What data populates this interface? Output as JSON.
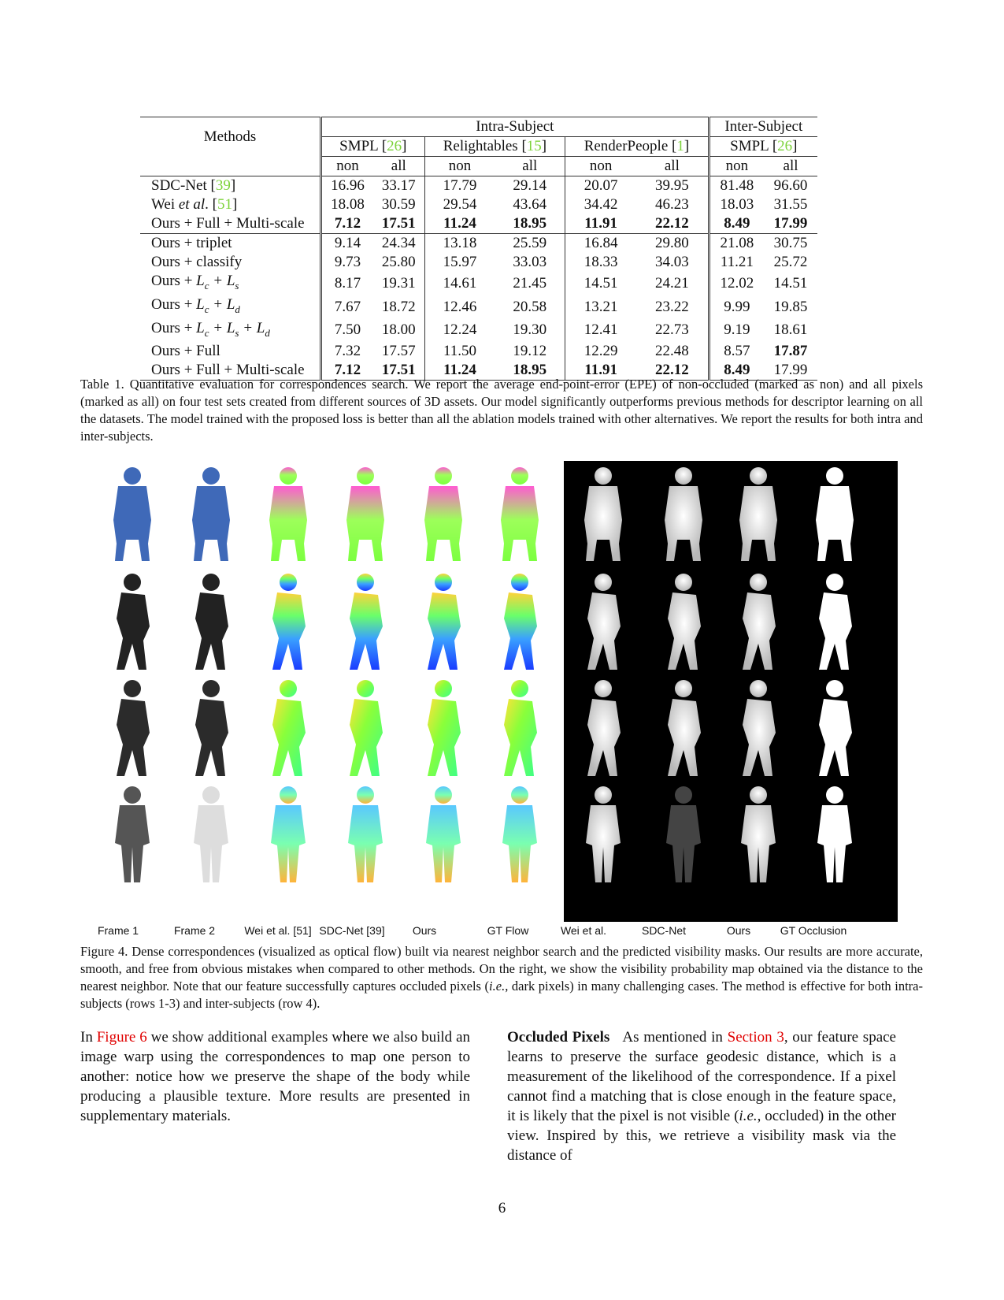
{
  "table": {
    "header": {
      "methods": "Methods",
      "intra": "Intra-Subject",
      "inter": "Inter-Subject",
      "datasets": [
        {
          "name": "SMPL [",
          "cite": "26",
          "close": "]"
        },
        {
          "name": "Relightables [",
          "cite": "15",
          "close": "]"
        },
        {
          "name": "RenderPeople [",
          "cite": "1",
          "close": "]"
        },
        {
          "name": "SMPL [",
          "cite": "26",
          "close": "]"
        }
      ],
      "non": "non",
      "all": "all"
    },
    "rows": [
      {
        "method_pre": "SDC-Net [",
        "cite": "39",
        "method_post": "]",
        "values": [
          "16.96",
          "33.17",
          "17.79",
          "29.14",
          "20.07",
          "39.95",
          "81.48",
          "96.60"
        ]
      },
      {
        "method_pre": "Wei ",
        "italic": "et al",
        "method_mid": ". [",
        "cite": "51",
        "method_post": "]",
        "values": [
          "18.08",
          "30.59",
          "29.54",
          "43.64",
          "34.42",
          "46.23",
          "18.03",
          "31.55"
        ]
      },
      {
        "method_pre": "Ours + Full + Multi-scale",
        "values": [
          "7.12",
          "17.51",
          "11.24",
          "18.95",
          "11.91",
          "22.12",
          "8.49",
          "17.99"
        ]
      },
      {
        "method_pre": "Ours + triplet",
        "values": [
          "9.14",
          "24.34",
          "13.18",
          "25.59",
          "16.84",
          "29.80",
          "21.08",
          "30.75"
        ]
      },
      {
        "method_pre": "Ours + classify",
        "values": [
          "9.73",
          "25.80",
          "15.97",
          "33.03",
          "18.33",
          "34.03",
          "11.21",
          "25.72"
        ]
      },
      {
        "method_pre": "Ours + ",
        "math": "L_c + L_s",
        "values": [
          "8.17",
          "19.31",
          "14.61",
          "21.45",
          "14.51",
          "24.21",
          "12.02",
          "14.51"
        ]
      },
      {
        "method_pre": "Ours + ",
        "math": "L_c + L_d",
        "values": [
          "7.67",
          "18.72",
          "12.46",
          "20.58",
          "13.21",
          "23.22",
          "9.99",
          "19.85"
        ]
      },
      {
        "method_pre": "Ours + ",
        "math": "L_c + L_s + L_d",
        "values": [
          "7.50",
          "18.00",
          "12.24",
          "19.30",
          "12.41",
          "22.73",
          "9.19",
          "18.61"
        ]
      },
      {
        "method_pre": "Ours + Full",
        "values": [
          "7.32",
          "17.57",
          "11.50",
          "19.12",
          "12.29",
          "22.48",
          "8.57",
          "17.87"
        ]
      },
      {
        "method_pre": "Ours + Full + Multi-scale",
        "values": [
          "7.12",
          "17.51",
          "11.24",
          "18.95",
          "11.91",
          "22.12",
          "8.49",
          "17.99"
        ]
      }
    ]
  },
  "table_caption": "Table 1. Quantitative evaluation for correspondences search. We report the average end-point-error (EPE) of non-occluded (marked as non) and all pixels (marked as all) on four test sets created from different sources of 3D assets. Our model significantly outperforms previous methods for descriptor learning on all the datasets. The model trained with the proposed loss is better than all the ablation models trained with other alternatives. We report the results for both intra and inter-subjects.",
  "figure": {
    "labels": [
      "Frame 1",
      "Frame 2",
      "Wei et al. [51]",
      "SDC-Net [39]",
      "Ours",
      "GT Flow",
      "Wei et al.",
      "SDC-Net",
      "Ours",
      "GT Occlusion"
    ],
    "caption_pre": "Figure 4. Dense correspondences (visualized as optical flow) built via nearest neighbor search and the predicted visibility masks. Our results are more accurate, smooth, and free from obvious mistakes when compared to other methods. On the right, we show the visibility probability map obtained via the distance to the nearest neighbor. Note that our feature successfully captures occluded pixels (",
    "caption_ie": "i.e.",
    "caption_post": ", dark pixels) in many challenging cases. The method is effective for both intra-subjects (rows 1-3) and inter-subjects (row 4)."
  },
  "left_col": {
    "pre": "In ",
    "ref": "Figure 6",
    "post": " we show additional examples where we also build an image warp using the correspondences to map one person to another: notice how we preserve the shape of the body while producing a plausible texture. More results are presented in supplementary materials."
  },
  "right_col": {
    "heading": "Occluded Pixels",
    "pre": "As mentioned in ",
    "ref": "Section 3",
    "mid": ", our feature space learns to preserve the surface geodesic distance, which is a measurement of the likelihood of the correspondence. If a pixel cannot find a matching that is close enough in the feature space, it is likely that the pixel is not visible (",
    "ie": "i.e.",
    "post": ", occluded) in the other view. Inspired by this, we retrieve a visibility mask via the distance of"
  },
  "page_number": "6"
}
